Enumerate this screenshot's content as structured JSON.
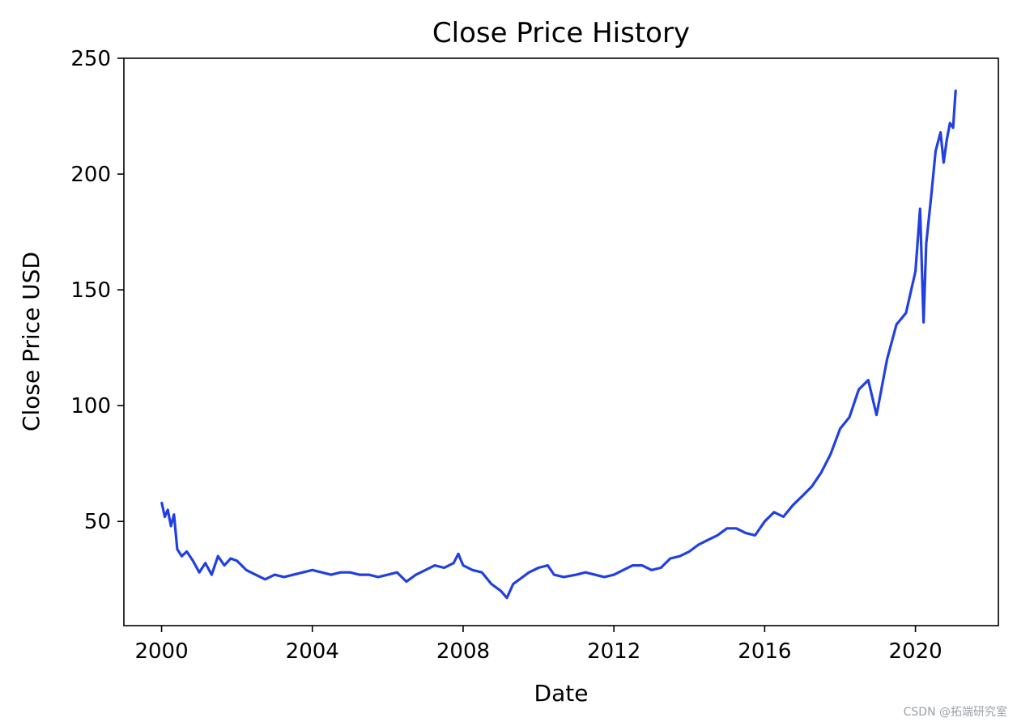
{
  "watermark": "CSDN @拓端研究室",
  "chart_data": {
    "type": "line",
    "title": "Close Price History",
    "xlabel": "Date",
    "ylabel": "Close Price USD",
    "xlim": [
      "1999-01-01",
      "2022-03-15"
    ],
    "ylim": [
      5,
      250
    ],
    "x_ticks": [
      "2000",
      "2004",
      "2008",
      "2012",
      "2016",
      "2020"
    ],
    "y_ticks": [
      50,
      100,
      150,
      200,
      250
    ],
    "grid": false,
    "legend": "none",
    "line_color": "#2240e0",
    "series": [
      {
        "x": [
          "2000-01-03",
          "2000-02-01",
          "2000-03-01",
          "2000-04-01",
          "2000-05-01",
          "2000-06-01",
          "2000-07-15",
          "2000-09-01",
          "2000-11-01",
          "2001-01-01",
          "2001-03-01",
          "2001-05-01",
          "2001-07-01",
          "2001-09-01",
          "2001-11-01",
          "2002-01-01",
          "2002-04-01",
          "2002-07-01",
          "2002-10-01",
          "2003-01-01",
          "2003-04-01",
          "2003-07-01",
          "2003-10-01",
          "2004-01-01",
          "2004-04-01",
          "2004-07-01",
          "2004-10-01",
          "2005-01-01",
          "2005-04-01",
          "2005-07-01",
          "2005-10-01",
          "2006-01-01",
          "2006-04-01",
          "2006-07-01",
          "2006-10-01",
          "2007-01-01",
          "2007-04-01",
          "2007-07-01",
          "2007-10-01",
          "2007-11-15",
          "2008-01-01",
          "2008-04-01",
          "2008-07-01",
          "2008-10-01",
          "2009-01-01",
          "2009-03-01",
          "2009-05-01",
          "2009-07-01",
          "2009-10-01",
          "2010-01-01",
          "2010-04-01",
          "2010-06-01",
          "2010-09-01",
          "2011-01-01",
          "2011-04-01",
          "2011-07-01",
          "2011-10-01",
          "2012-01-01",
          "2012-04-01",
          "2012-07-01",
          "2012-10-01",
          "2013-01-01",
          "2013-04-01",
          "2013-07-01",
          "2013-10-01",
          "2014-01-01",
          "2014-04-01",
          "2014-07-01",
          "2014-10-01",
          "2015-01-01",
          "2015-04-01",
          "2015-07-01",
          "2015-10-01",
          "2016-01-01",
          "2016-04-01",
          "2016-07-01",
          "2016-10-01",
          "2017-01-01",
          "2017-04-01",
          "2017-07-01",
          "2017-10-01",
          "2018-01-01",
          "2018-04-01",
          "2018-07-01",
          "2018-10-01",
          "2018-12-20",
          "2019-01-15",
          "2019-04-01",
          "2019-07-01",
          "2019-10-01",
          "2020-01-01",
          "2020-02-15",
          "2020-03-20",
          "2020-04-15",
          "2020-06-01",
          "2020-07-15",
          "2020-09-01",
          "2020-10-01",
          "2020-11-01",
          "2020-12-01",
          "2021-01-01",
          "2021-01-25"
        ],
        "y": [
          58,
          52,
          55,
          48,
          53,
          38,
          35,
          37,
          33,
          28,
          32,
          27,
          35,
          31,
          34,
          33,
          29,
          27,
          25,
          27,
          26,
          27,
          28,
          29,
          28,
          27,
          28,
          28,
          27,
          27,
          26,
          27,
          28,
          24,
          27,
          29,
          31,
          30,
          32,
          36,
          31,
          29,
          28,
          23,
          20,
          17,
          23,
          25,
          28,
          30,
          31,
          27,
          26,
          27,
          28,
          27,
          26,
          27,
          29,
          31,
          31,
          29,
          30,
          34,
          35,
          37,
          40,
          42,
          44,
          47,
          47,
          45,
          44,
          50,
          54,
          52,
          57,
          61,
          65,
          71,
          79,
          90,
          95,
          107,
          111,
          96,
          102,
          120,
          135,
          140,
          158,
          185,
          136,
          170,
          190,
          210,
          218,
          205,
          215,
          222,
          220,
          236
        ]
      }
    ]
  }
}
